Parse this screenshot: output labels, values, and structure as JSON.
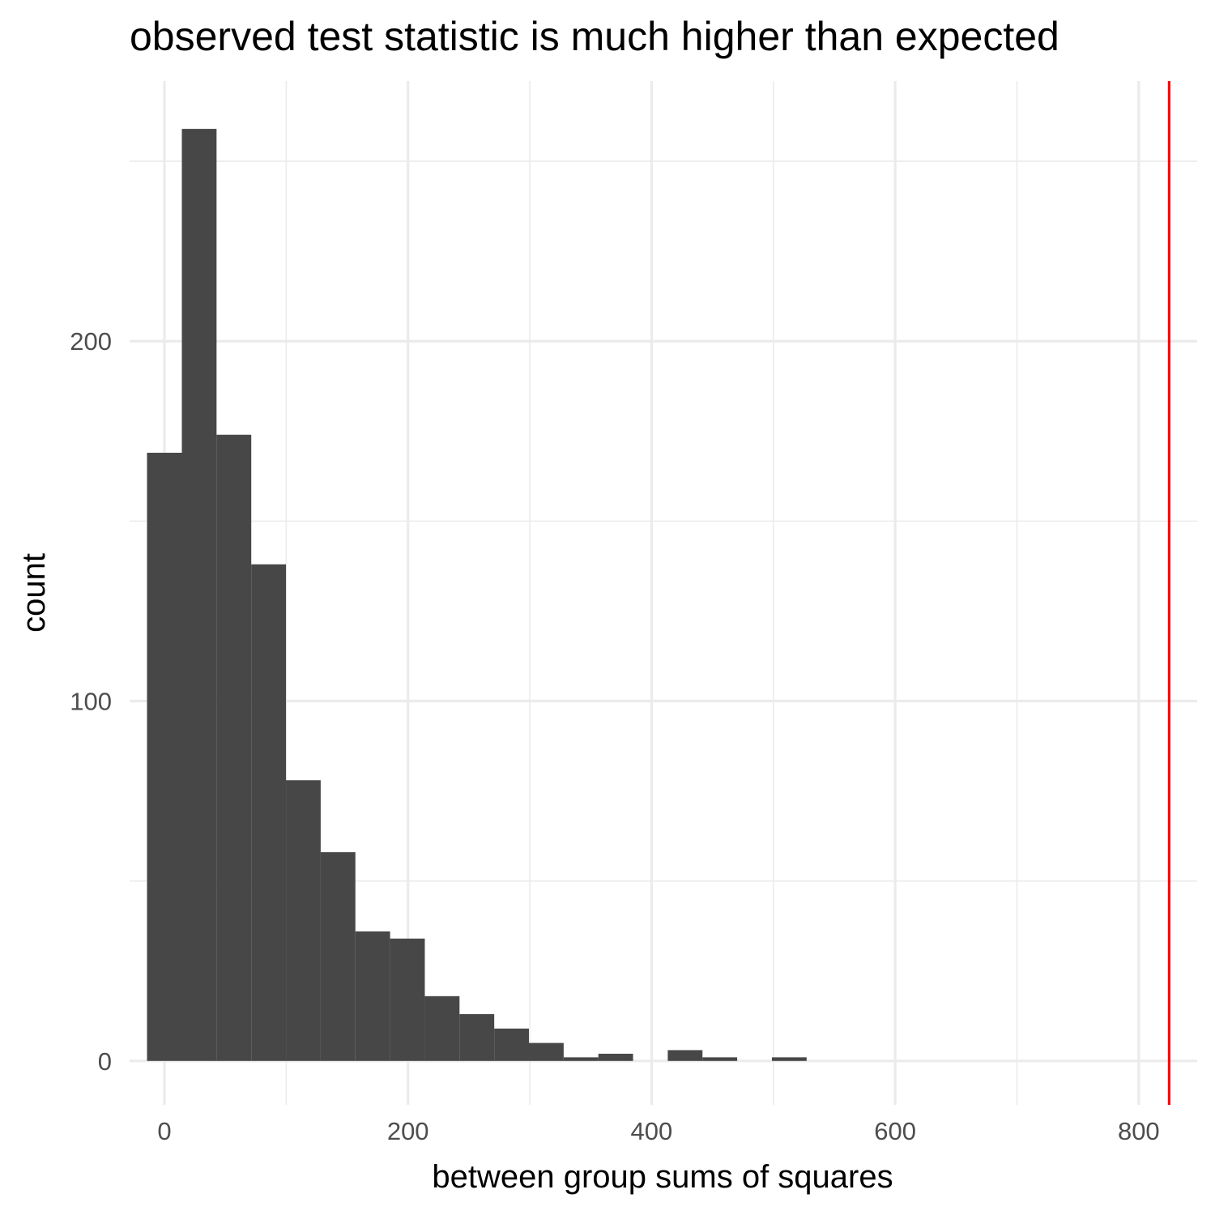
{
  "chart_data": {
    "type": "histogram",
    "title": "observed test statistic is much higher than expected",
    "xlabel": "between group sums of squares",
    "ylabel": "count",
    "xlim": [
      -28.6,
      848
    ],
    "ylim": [
      -12.2,
      272.3
    ],
    "x_ticks": [
      0,
      200,
      400,
      600,
      800
    ],
    "y_ticks": [
      0,
      100,
      200
    ],
    "x_minor_ticks": [
      100,
      300,
      500,
      700
    ],
    "y_minor_ticks": [
      50,
      150,
      250
    ],
    "bins": [
      {
        "x0": -14.3,
        "x1": 14.3,
        "count": 169
      },
      {
        "x0": 14.3,
        "x1": 42.8,
        "count": 259
      },
      {
        "x0": 42.8,
        "x1": 71.3,
        "count": 174
      },
      {
        "x0": 71.3,
        "x1": 99.8,
        "count": 138
      },
      {
        "x0": 99.8,
        "x1": 128.3,
        "count": 78
      },
      {
        "x0": 128.3,
        "x1": 156.8,
        "count": 58
      },
      {
        "x0": 156.8,
        "x1": 185.3,
        "count": 36
      },
      {
        "x0": 185.3,
        "x1": 213.8,
        "count": 34
      },
      {
        "x0": 213.8,
        "x1": 242.3,
        "count": 18
      },
      {
        "x0": 242.3,
        "x1": 270.8,
        "count": 13
      },
      {
        "x0": 270.8,
        "x1": 299.3,
        "count": 9
      },
      {
        "x0": 299.3,
        "x1": 327.8,
        "count": 5
      },
      {
        "x0": 327.8,
        "x1": 356.3,
        "count": 1
      },
      {
        "x0": 356.3,
        "x1": 384.8,
        "count": 2
      },
      {
        "x0": 384.8,
        "x1": 413.3,
        "count": 0
      },
      {
        "x0": 413.3,
        "x1": 441.8,
        "count": 3
      },
      {
        "x0": 441.8,
        "x1": 470.3,
        "count": 1
      },
      {
        "x0": 470.3,
        "x1": 498.8,
        "count": 0
      },
      {
        "x0": 498.8,
        "x1": 527.3,
        "count": 1
      }
    ],
    "observed_statistic": 825,
    "grid": true,
    "colors": {
      "bar": "#474747",
      "vline": "#ff0000",
      "grid": "#ebebeb",
      "background": "#ffffff"
    }
  }
}
